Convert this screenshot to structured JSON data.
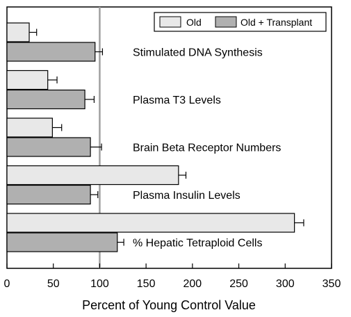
{
  "chart_data": {
    "type": "bar",
    "orientation": "horizontal",
    "categories": [
      "Stimulated DNA Synthesis",
      "Plasma T3 Levels",
      "Brain Beta Receptor Numbers",
      "Plasma Insulin Levels",
      "% Hepatic Tetraploid Cells"
    ],
    "series": [
      {
        "name": "Old",
        "color": "#e8e8e8",
        "values": [
          24,
          44,
          49,
          185,
          310
        ],
        "errors": [
          8,
          10,
          10,
          8,
          10
        ]
      },
      {
        "name": "Old + Transplant",
        "color": "#b0b0b0",
        "values": [
          95,
          84,
          90,
          90,
          119
        ],
        "errors": [
          8,
          10,
          12,
          8,
          7
        ]
      }
    ],
    "xlabel": "Percent of Young Control Value",
    "xlim": [
      0,
      350
    ],
    "xticks": [
      0,
      50,
      100,
      150,
      200,
      250,
      300,
      350
    ],
    "reference_line": {
      "value": 100,
      "color": "#a0a0a0"
    },
    "grid": false,
    "legend": {
      "position": "top-right"
    }
  }
}
